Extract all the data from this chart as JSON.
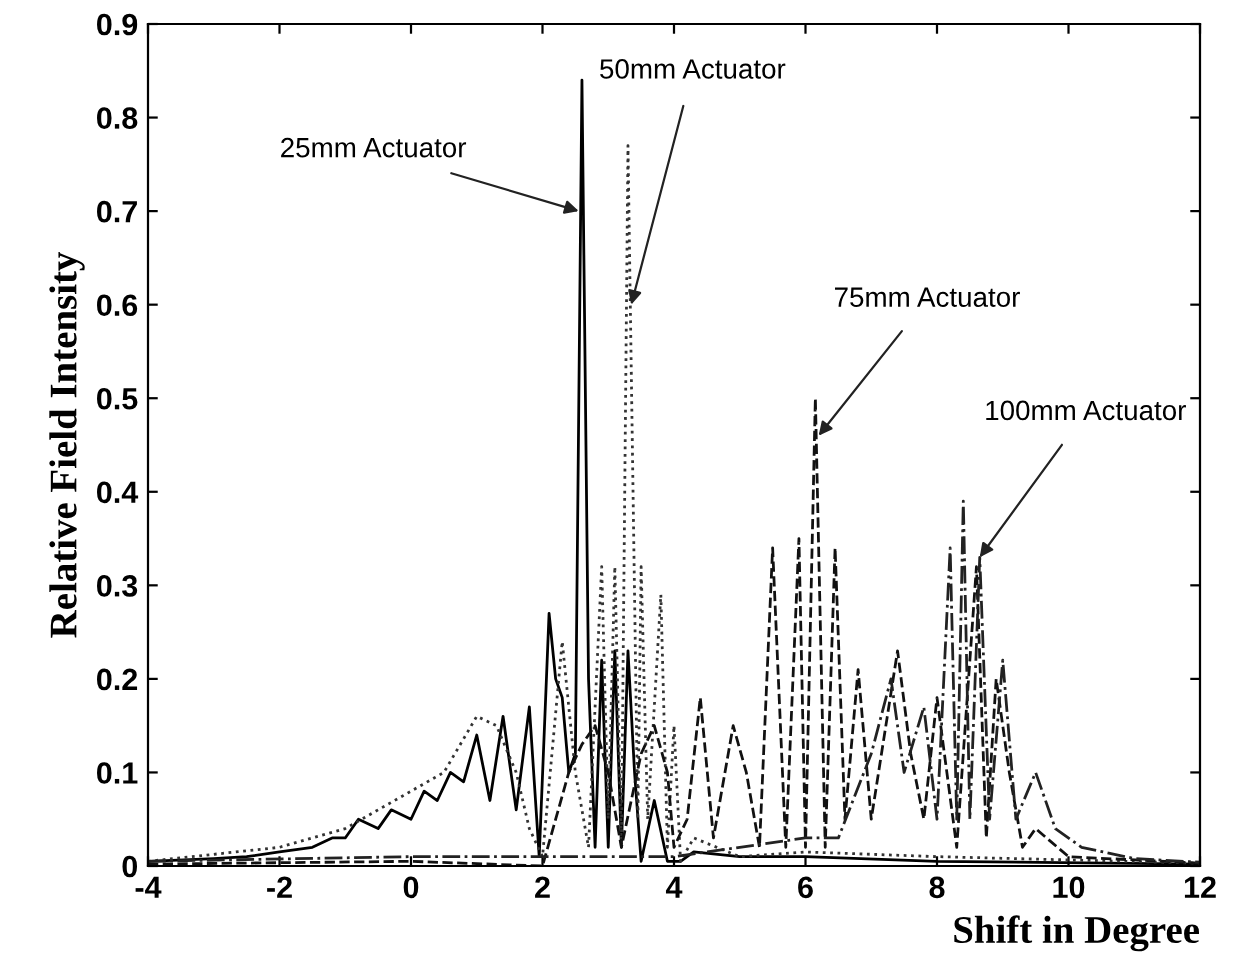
{
  "chart_data": {
    "type": "line",
    "xlabel": "Shift in Degree",
    "ylabel": "Relative Field Intensity",
    "xlim": [
      -4,
      12
    ],
    "ylim": [
      0,
      0.9
    ],
    "xticks": [
      -4,
      -2,
      0,
      2,
      4,
      6,
      8,
      10,
      12
    ],
    "yticks": [
      0,
      0.1,
      0.2,
      0.3,
      0.4,
      0.5,
      0.6,
      0.7,
      0.8,
      0.9
    ],
    "grid": false,
    "legend": false,
    "marker": "none",
    "series": [
      {
        "color": "#000000",
        "line_style": "solid",
        "x": [
          -4,
          -3,
          -2.5,
          -2,
          -1.5,
          -1.2,
          -1,
          -0.8,
          -0.5,
          -0.3,
          0,
          0.2,
          0.4,
          0.6,
          0.8,
          1.0,
          1.2,
          1.4,
          1.6,
          1.8,
          1.95,
          2.1,
          2.2,
          2.3,
          2.4,
          2.5,
          2.6,
          2.7,
          2.8,
          2.9,
          3.0,
          3.1,
          3.2,
          3.3,
          3.4,
          3.5,
          3.7,
          3.9,
          4.1,
          4.3,
          5,
          6,
          8,
          12
        ],
        "values": [
          0.005,
          0.008,
          0.01,
          0.015,
          0.02,
          0.03,
          0.03,
          0.05,
          0.04,
          0.06,
          0.05,
          0.08,
          0.07,
          0.1,
          0.09,
          0.14,
          0.07,
          0.16,
          0.06,
          0.17,
          0.01,
          0.27,
          0.2,
          0.18,
          0.1,
          0.12,
          0.84,
          0.2,
          0.02,
          0.22,
          0.02,
          0.23,
          0.02,
          0.23,
          0.1,
          0.005,
          0.07,
          0.005,
          0.005,
          0.015,
          0.01,
          0.01,
          0.005,
          0.002
        ]
      },
      {
        "color": "#333333",
        "line_style": "dotted",
        "x": [
          -4,
          -2,
          -1,
          0,
          0.5,
          1.0,
          1.3,
          1.6,
          1.8,
          2.0,
          2.3,
          2.5,
          2.7,
          2.9,
          3.0,
          3.1,
          3.2,
          3.3,
          3.45,
          3.5,
          3.6,
          3.8,
          3.9,
          4.0,
          4.1,
          4.3,
          5,
          6,
          8,
          12
        ],
        "values": [
          0.005,
          0.02,
          0.04,
          0.08,
          0.1,
          0.16,
          0.15,
          0.1,
          0.04,
          0.01,
          0.24,
          0.1,
          0.02,
          0.32,
          0.05,
          0.32,
          0.02,
          0.77,
          0.05,
          0.32,
          0.05,
          0.29,
          0.02,
          0.15,
          0.005,
          0.03,
          0.01,
          0.015,
          0.01,
          0.003
        ]
      },
      {
        "color": "#111111",
        "line_style": "dashed",
        "x": [
          -4,
          0,
          2.0,
          2.4,
          2.6,
          2.8,
          3.0,
          3.2,
          3.5,
          3.7,
          3.9,
          4.0,
          4.2,
          4.4,
          4.6,
          4.9,
          5.1,
          5.3,
          5.5,
          5.7,
          5.9,
          6.0,
          6.15,
          6.3,
          6.45,
          6.6,
          6.8,
          7.0,
          7.4,
          7.6,
          7.8,
          8.0,
          8.3,
          8.6,
          8.75,
          8.9,
          9.1,
          9.3,
          9.5,
          10,
          12
        ],
        "values": [
          0.002,
          0.005,
          0.0,
          0.1,
          0.13,
          0.15,
          0.1,
          0.02,
          0.12,
          0.15,
          0.1,
          0.02,
          0.05,
          0.18,
          0.03,
          0.15,
          0.1,
          0.02,
          0.34,
          0.02,
          0.35,
          0.02,
          0.5,
          0.02,
          0.34,
          0.05,
          0.21,
          0.05,
          0.23,
          0.12,
          0.05,
          0.18,
          0.02,
          0.32,
          0.03,
          0.2,
          0.1,
          0.02,
          0.04,
          0.01,
          0.003
        ]
      },
      {
        "color": "#222222",
        "line_style": "dashdot",
        "x": [
          -4,
          0,
          4,
          5,
          6,
          6.5,
          7,
          7.3,
          7.5,
          7.8,
          8.0,
          8.2,
          8.3,
          8.4,
          8.5,
          8.65,
          8.8,
          9.0,
          9.2,
          9.5,
          9.8,
          10.2,
          11,
          12
        ],
        "values": [
          0.005,
          0.01,
          0.01,
          0.02,
          0.03,
          0.03,
          0.12,
          0.2,
          0.1,
          0.17,
          0.05,
          0.34,
          0.05,
          0.39,
          0.05,
          0.33,
          0.05,
          0.22,
          0.05,
          0.1,
          0.04,
          0.02,
          0.008,
          0.004
        ]
      }
    ],
    "annotations": [
      {
        "text": "25mm Actuator",
        "x": 2.55,
        "y": 0.7
      },
      {
        "text": "50mm Actuator",
        "x": 3.35,
        "y": 0.6
      },
      {
        "text": "75mm Actuator",
        "x": 6.2,
        "y": 0.46
      },
      {
        "text": "100mm Actuator",
        "x": 8.65,
        "y": 0.33
      }
    ]
  }
}
